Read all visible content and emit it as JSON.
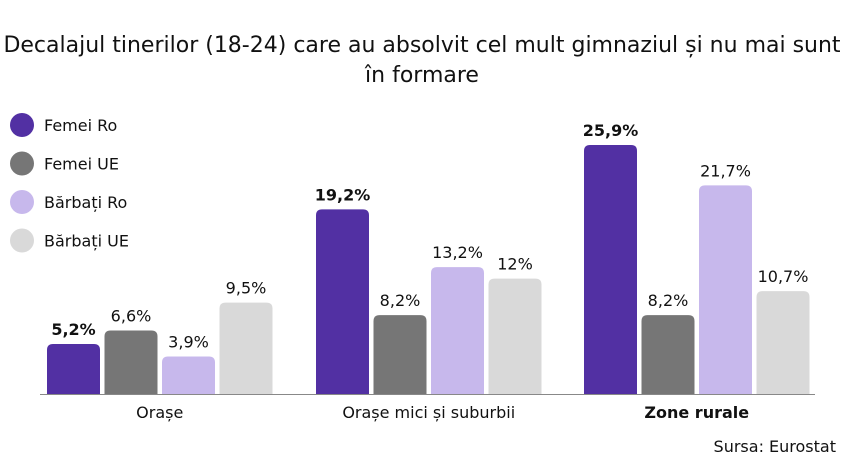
{
  "chart_data": {
    "type": "bar",
    "title_lines": [
      "Decalajul tinerilor (18-24) care au absolvit cel mult gimnaziul și nu mai sunt",
      "în formare"
    ],
    "categories": [
      "Orașe",
      "Orașe mici și suburbii",
      "Zone rurale"
    ],
    "highlight_category": 2,
    "series": [
      {
        "name": "Femei Ro",
        "color": "#5230a3",
        "values": [
          5.2,
          19.2,
          25.9
        ],
        "labels": [
          "5,2%",
          "19,2%",
          "25,9%"
        ],
        "emphasis": true
      },
      {
        "name": "Femei UE",
        "color": "#767676",
        "values": [
          6.6,
          8.2,
          8.2
        ],
        "labels": [
          "6,6%",
          "8,2%",
          "8,2%"
        ],
        "emphasis": false
      },
      {
        "name": "Bărbați Ro",
        "color": "#c7b8ec",
        "values": [
          3.9,
          13.2,
          21.7
        ],
        "labels": [
          "3,9%",
          "13,2%",
          "21,7%"
        ],
        "emphasis": false
      },
      {
        "name": "Bărbați UE",
        "color": "#d9d9d9",
        "values": [
          9.5,
          12,
          10.7
        ],
        "labels": [
          "9,5%",
          "12%",
          "10,7%"
        ],
        "emphasis": false
      }
    ],
    "ylim": [
      0,
      26
    ],
    "grid": false,
    "legend_position": "top-left",
    "source": "Sursa: Eurostat",
    "colors": {
      "accent": "#5230a3",
      "axis": "#888888",
      "text": "#111111"
    }
  }
}
